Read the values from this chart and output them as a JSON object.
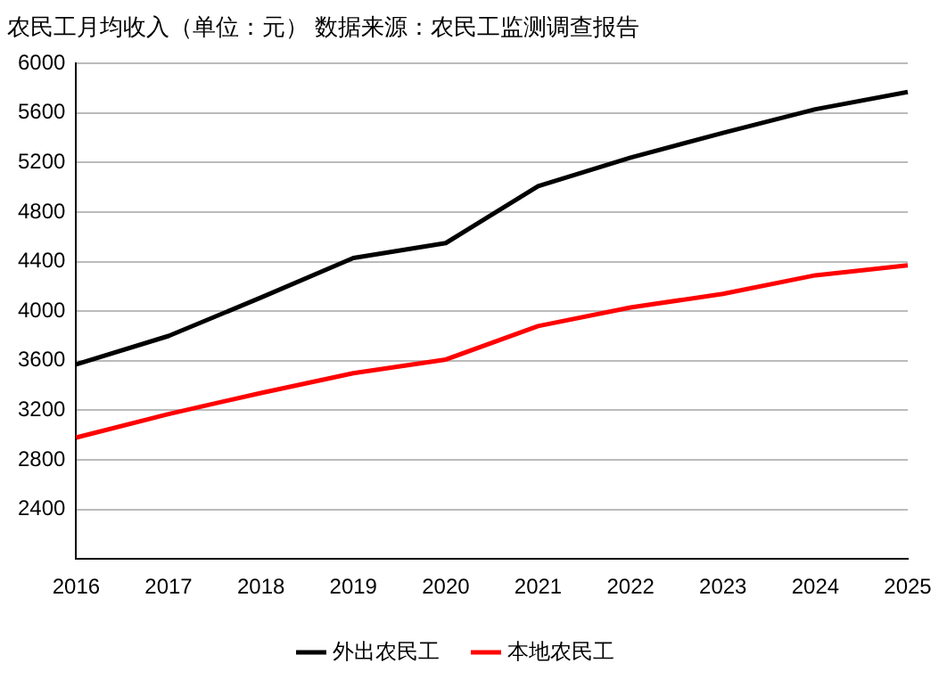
{
  "chart_data": {
    "type": "line",
    "title": "农民工月均收入（单位：元） 数据来源：农民工监测调查报告",
    "categories": [
      "2016",
      "2017",
      "2018",
      "2019",
      "2020",
      "2021",
      "2022",
      "2023",
      "2024",
      "2025"
    ],
    "series": [
      {
        "name": "外出农民工",
        "color": "#000000",
        "values": [
          3570,
          3800,
          4110,
          4430,
          4550,
          5010,
          5240,
          5440,
          5630,
          5770
        ]
      },
      {
        "name": "本地农民工",
        "color": "#ff0000",
        "values": [
          2980,
          3170,
          3340,
          3500,
          3610,
          3880,
          4030,
          4140,
          4290,
          4370
        ]
      }
    ],
    "ylim": [
      2000,
      6000
    ],
    "yticks": [
      2400,
      2800,
      3200,
      3600,
      4000,
      4400,
      4800,
      5200,
      5600,
      6000
    ],
    "grid": "y",
    "legend": "bottom",
    "marker": "none",
    "line_style": "solid"
  }
}
